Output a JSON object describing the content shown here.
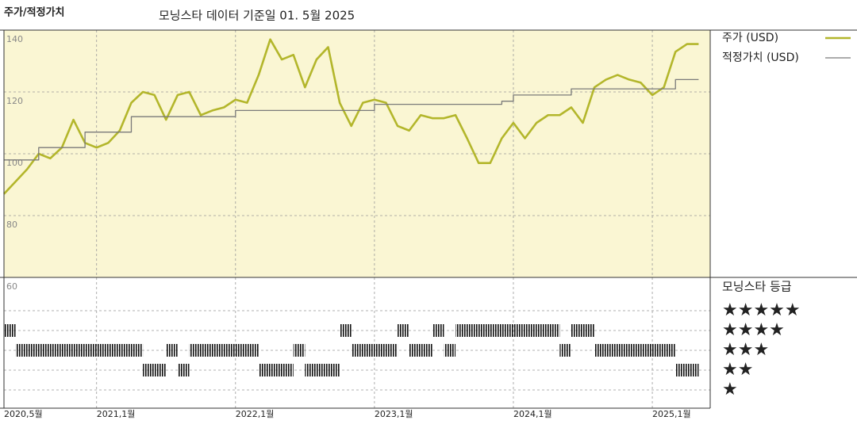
{
  "chart_data": {
    "type": "line",
    "title": "모닝스타 데이터 기준일 01. 5월 2025",
    "axis_title": "주가/적정가치",
    "x": [
      "2020-05",
      "2020-06",
      "2020-07",
      "2020-08",
      "2020-09",
      "2020-10",
      "2020-11",
      "2020-12",
      "2021-01",
      "2021-02",
      "2021-03",
      "2021-04",
      "2021-05",
      "2021-06",
      "2021-07",
      "2021-08",
      "2021-09",
      "2021-10",
      "2021-11",
      "2021-12",
      "2022-01",
      "2022-02",
      "2022-03",
      "2022-04",
      "2022-05",
      "2022-06",
      "2022-07",
      "2022-08",
      "2022-09",
      "2022-10",
      "2022-11",
      "2022-12",
      "2023-01",
      "2023-02",
      "2023-03",
      "2023-04",
      "2023-05",
      "2023-06",
      "2023-07",
      "2023-08",
      "2023-09",
      "2023-10",
      "2023-11",
      "2023-12",
      "2024-01",
      "2024-02",
      "2024-03",
      "2024-04",
      "2024-05",
      "2024-06",
      "2024-07",
      "2024-08",
      "2024-09",
      "2024-10",
      "2024-11",
      "2024-12",
      "2025-01",
      "2025-02",
      "2025-03",
      "2025-04",
      "2025-05"
    ],
    "series": [
      {
        "name": "주가 (USD)",
        "color": "#b3b62b",
        "values": [
          87,
          91,
          95,
          100,
          98.5,
          102,
          111,
          103.5,
          102,
          103.5,
          107.5,
          116.5,
          120,
          119,
          111,
          119,
          120,
          112.5,
          114,
          115,
          117.5,
          116.5,
          125.5,
          137,
          130.5,
          132,
          121.5,
          130.5,
          134.5,
          116.5,
          109,
          116.5,
          117.5,
          116.5,
          109,
          107.5,
          112.5,
          111.5,
          111.5,
          112.5,
          105,
          97,
          97,
          105,
          110,
          105,
          110,
          112.5,
          112.5,
          115,
          110,
          121.5,
          124,
          125.5,
          124,
          123,
          119,
          121.5,
          133,
          135.5,
          135.5
        ]
      },
      {
        "name": "적정가치 (USD)",
        "color": "#7a7a7a",
        "step": true,
        "values": [
          98,
          98,
          98,
          102,
          102,
          102,
          102,
          107,
          107,
          107,
          107,
          112,
          112,
          112,
          112,
          112,
          112,
          112,
          112,
          112,
          114,
          114,
          114,
          114,
          114,
          114,
          114,
          114,
          114,
          114,
          114,
          114,
          116,
          116,
          116,
          116,
          116,
          116,
          116,
          116,
          116,
          116,
          116,
          117,
          119,
          119,
          119,
          119,
          119,
          121,
          121,
          121,
          121,
          121,
          121,
          121,
          121,
          121,
          124,
          124,
          124
        ]
      }
    ],
    "xlim": [
      "2020-05",
      "2025-06"
    ],
    "xticks": [
      {
        "value": "2020-05",
        "label": "2020,5월"
      },
      {
        "value": "2021-01",
        "label": "2021,1월"
      },
      {
        "value": "2022-01",
        "label": "2022,1월"
      },
      {
        "value": "2023-01",
        "label": "2023,1월"
      },
      {
        "value": "2024-01",
        "label": "2024,1월"
      },
      {
        "value": "2025-01",
        "label": "2025,1월"
      }
    ],
    "ylim": [
      60,
      140
    ],
    "yticks": [
      60,
      80,
      100,
      120,
      140
    ],
    "grid": true,
    "background": "#faf6d3",
    "rating": {
      "title": "모닝스타 등급",
      "levels": [
        {
          "stars": 5,
          "label": "★★★★★"
        },
        {
          "stars": 4,
          "label": "★★★★"
        },
        {
          "stars": 3,
          "label": "★★★"
        },
        {
          "stars": 2,
          "label": "★★"
        },
        {
          "stars": 1,
          "label": "★"
        }
      ],
      "periods": [
        {
          "start": "2020-05",
          "end": "2020-06",
          "stars": 4
        },
        {
          "start": "2020-06",
          "end": "2021-05",
          "stars": 3
        },
        {
          "start": "2021-05",
          "end": "2021-07",
          "stars": 2
        },
        {
          "start": "2021-07",
          "end": "2021-08",
          "stars": 3
        },
        {
          "start": "2021-08",
          "end": "2021-09",
          "stars": 2
        },
        {
          "start": "2021-09",
          "end": "2022-03",
          "stars": 3
        },
        {
          "start": "2022-03",
          "end": "2022-06",
          "stars": 2
        },
        {
          "start": "2022-06",
          "end": "2022-07",
          "stars": 3
        },
        {
          "start": "2022-07",
          "end": "2022-10",
          "stars": 2
        },
        {
          "start": "2022-10",
          "end": "2022-11",
          "stars": 4
        },
        {
          "start": "2022-11",
          "end": "2023-03",
          "stars": 3
        },
        {
          "start": "2023-03",
          "end": "2023-04",
          "stars": 4
        },
        {
          "start": "2023-04",
          "end": "2023-06",
          "stars": 3
        },
        {
          "start": "2023-06",
          "end": "2023-07",
          "stars": 4
        },
        {
          "start": "2023-07",
          "end": "2023-08",
          "stars": 3
        },
        {
          "start": "2023-08",
          "end": "2024-05",
          "stars": 4
        },
        {
          "start": "2024-05",
          "end": "2024-06",
          "stars": 3
        },
        {
          "start": "2024-06",
          "end": "2024-08",
          "stars": 4
        },
        {
          "start": "2024-08",
          "end": "2025-03",
          "stars": 3
        },
        {
          "start": "2025-03",
          "end": "2025-05",
          "stars": 2
        }
      ]
    }
  }
}
